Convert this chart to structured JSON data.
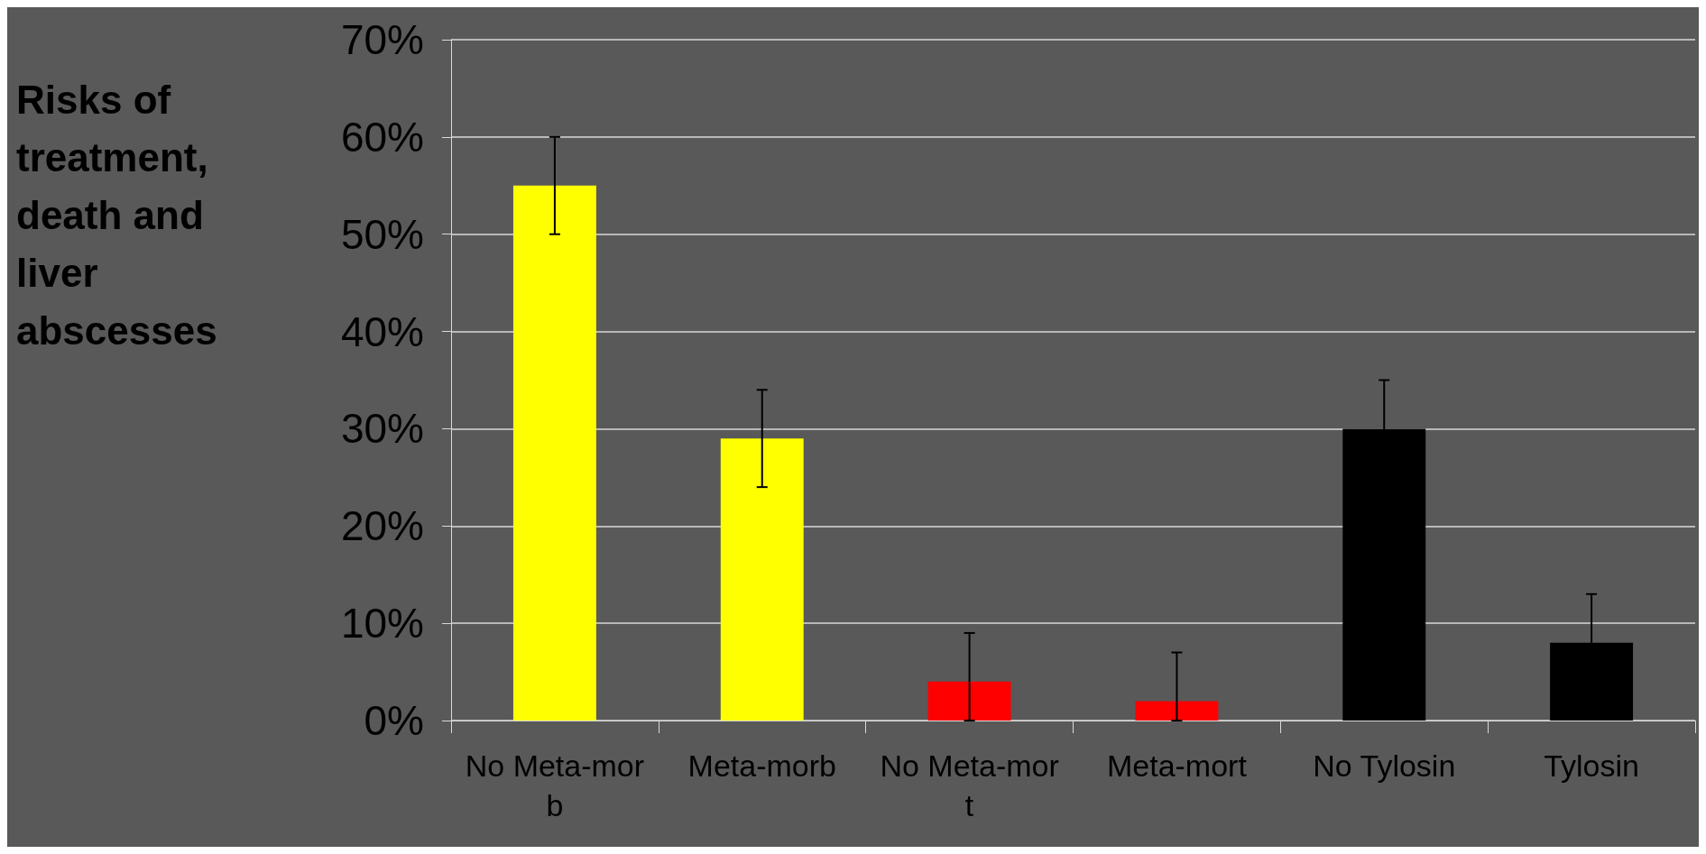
{
  "chart_data": {
    "type": "bar",
    "ylabel": "Risks of treatment, death and liver abscesses",
    "categories": [
      "No Meta-morb",
      "Meta-morb",
      "No Meta-mort",
      "Meta-mort",
      "No Tylosin",
      "Tylosin"
    ],
    "values": [
      55,
      29,
      4,
      2,
      30,
      8
    ],
    "colors": [
      "#ffff00",
      "#ffff00",
      "#ff0000",
      "#ff0000",
      "#000000",
      "#000000"
    ],
    "errors": [
      5,
      5,
      [
        0,
        9
      ],
      [
        0,
        7
      ],
      5,
      5
    ],
    "ylim": [
      0,
      70
    ],
    "yticks": [
      {
        "value": 0,
        "label": "0%"
      },
      {
        "value": 10,
        "label": "10%"
      },
      {
        "value": 20,
        "label": "20%"
      },
      {
        "value": 30,
        "label": "30%"
      },
      {
        "value": 40,
        "label": "40%"
      },
      {
        "value": 50,
        "label": "50%"
      },
      {
        "value": 60,
        "label": "60%"
      },
      {
        "value": 70,
        "label": "70%"
      }
    ],
    "grid": "y"
  }
}
